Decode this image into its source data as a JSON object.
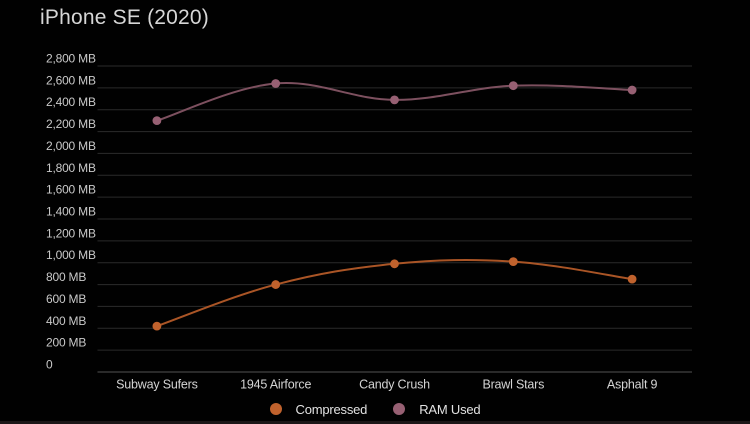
{
  "title": "iPhone SE (2020)",
  "chart_data": {
    "type": "line",
    "title": "iPhone SE (2020)",
    "categories": [
      "Subway Sufers",
      "1945 Airforce",
      "Candy Crush",
      "Brawl Stars",
      "Asphalt 9"
    ],
    "series": [
      {
        "name": "Compressed",
        "values": [
          420,
          800,
          990,
          1010,
          850
        ],
        "line_color": "#aa5526",
        "dot_color": "#c0622d"
      },
      {
        "name": "RAM Used",
        "values": [
          2300,
          2640,
          2490,
          2620,
          2580
        ],
        "line_color": "#7d505f",
        "dot_color": "#976073"
      }
    ],
    "unit": "MB",
    "ylim": [
      0,
      2800
    ],
    "y_tick_step": 200,
    "y_tick_labels": [
      "0",
      "200 MB",
      "400 MB",
      "600 MB",
      "800 MB",
      "1,000 MB",
      "1,200 MB",
      "1,400 MB",
      "1,600 MB",
      "1,800 MB",
      "2,000 MB",
      "2,200 MB",
      "2,400 MB",
      "2,600 MB",
      "2,800 MB"
    ],
    "grid": true,
    "smooth": true,
    "legend_position": "bottom"
  },
  "legend": {
    "items": [
      {
        "label": "Compressed",
        "color": "#c0622d"
      },
      {
        "label": "RAM Used",
        "color": "#976073"
      }
    ]
  },
  "colors": {
    "background": "#010101",
    "title_text": "#d6d6d6",
    "axis_text": "#c9c9c9",
    "gridline": "#2b2b2b",
    "zero_line": "#545454"
  }
}
